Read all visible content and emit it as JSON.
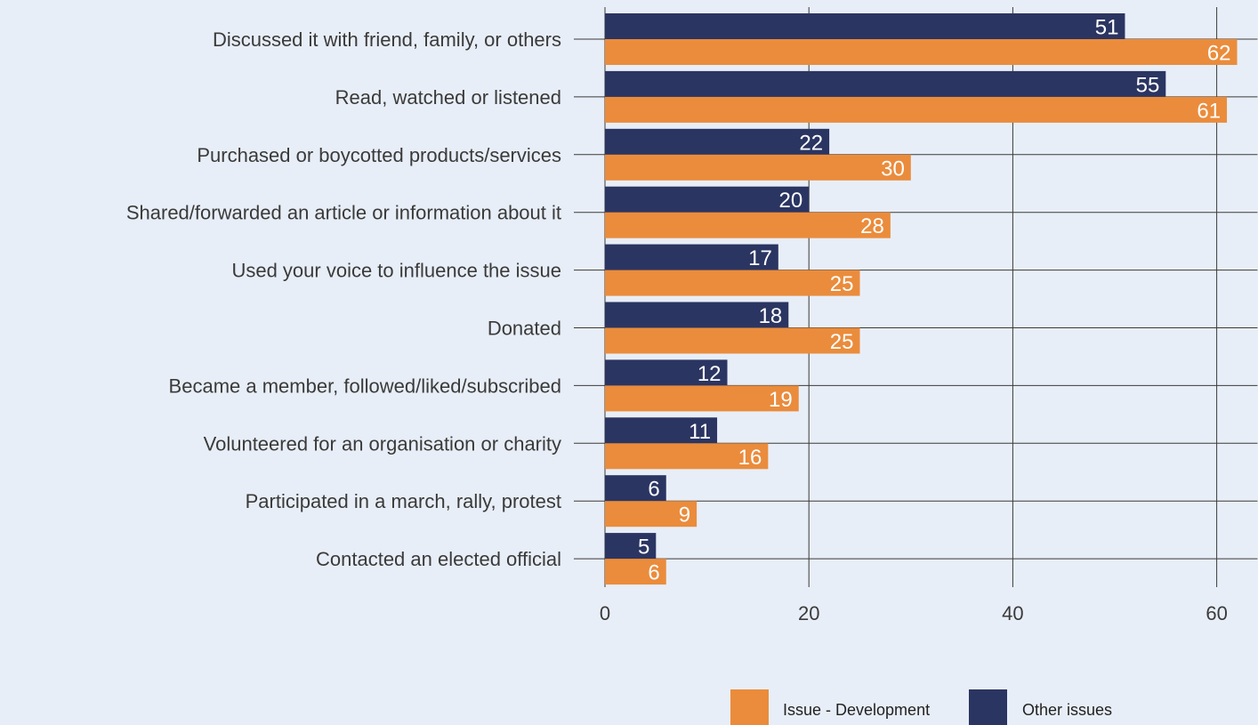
{
  "chart_data": {
    "type": "bar",
    "orientation": "horizontal",
    "categories": [
      "Discussed it with friend, family, or others",
      "Read, watched or listened",
      "Purchased or boycotted products/services",
      "Shared/forwarded an article or information about it",
      "Used your voice to influence the issue",
      "Donated",
      "Became a member, followed/liked/subscribed",
      "Volunteered for an organisation or charity",
      "Participated in a march, rally, protest",
      "Contacted an elected official"
    ],
    "series": [
      {
        "name": "Other issues",
        "values": [
          51,
          55,
          22,
          20,
          17,
          18,
          12,
          11,
          6,
          5
        ],
        "color": "#2b3562"
      },
      {
        "name": "Issue - Development",
        "values": [
          62,
          61,
          30,
          28,
          25,
          25,
          19,
          16,
          9,
          6
        ],
        "color": "#ea8c3c"
      }
    ],
    "x_ticks": [
      "0",
      "20",
      "40",
      "60"
    ],
    "xlim": [
      0,
      64
    ],
    "grid": true,
    "legend": {
      "position": "bottom-right",
      "order": [
        "Issue - Development",
        "Other issues"
      ]
    }
  },
  "colors": {
    "background": "#e8eef7",
    "gridline": "#3a3a3a",
    "text": "#3a3a3a"
  }
}
